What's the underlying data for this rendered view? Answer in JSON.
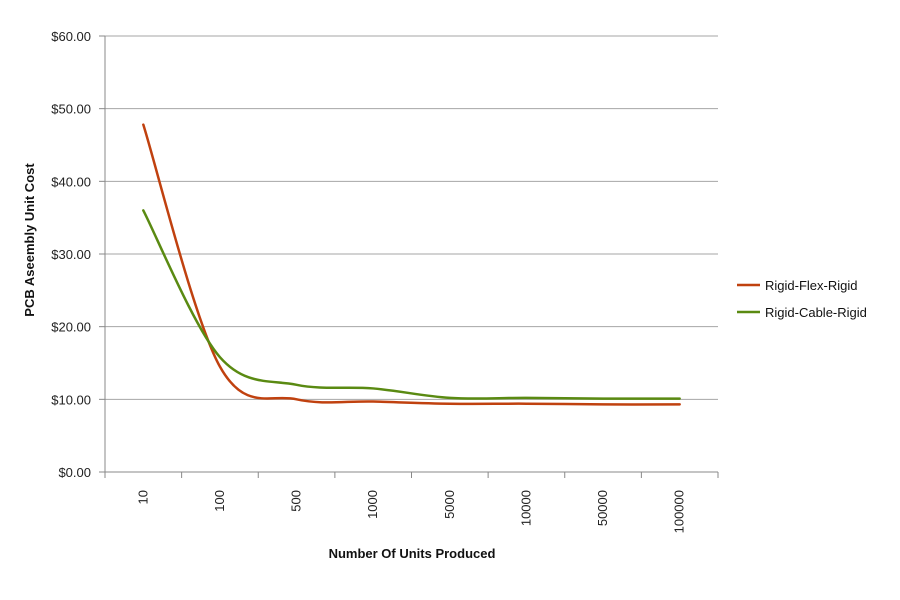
{
  "chart_data": {
    "type": "line",
    "title": "",
    "xlabel": "Number Of Units Produced",
    "ylabel": "PCB Aseembly Unit Cost",
    "categories": [
      "10",
      "100",
      "500",
      "1000",
      "5000",
      "10000",
      "50000",
      "100000"
    ],
    "y_ticks": [
      "$0.00",
      "$10.00",
      "$20.00",
      "$30.00",
      "$40.00",
      "$50.00",
      "$60.00"
    ],
    "ylim": [
      0,
      60
    ],
    "grid": true,
    "legend_position": "right",
    "series": [
      {
        "name": "Rigid-Flex-Rigid",
        "color": "#c0410f",
        "values": [
          47.8,
          14.5,
          10.0,
          9.7,
          9.4,
          9.4,
          9.3,
          9.3
        ]
      },
      {
        "name": "Rigid-Cable-Rigid",
        "color": "#5a8a12",
        "values": [
          36.0,
          15.8,
          12.0,
          11.5,
          10.2,
          10.2,
          10.1,
          10.1
        ]
      }
    ]
  }
}
